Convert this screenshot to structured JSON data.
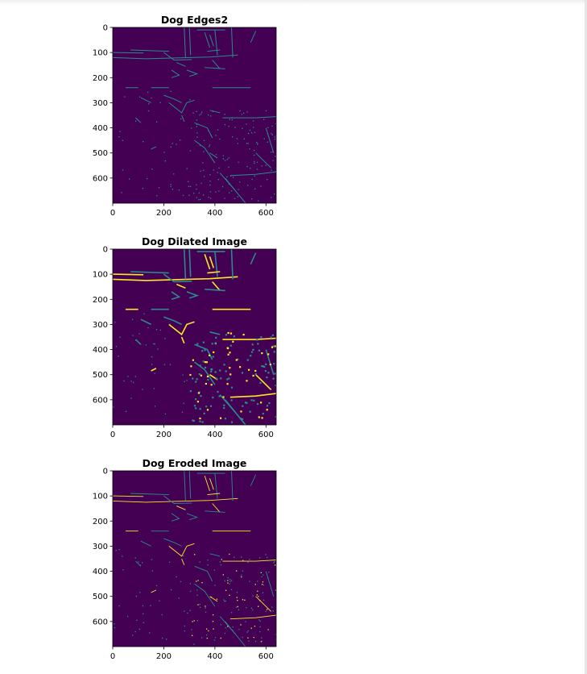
{
  "colors": {
    "background": "#440154",
    "edge_teal": "#2a8a8c",
    "edge_green": "#43b47a",
    "edge_yellow": "#fde725",
    "axis": "#000000"
  },
  "chart_data": [
    {
      "type": "heatmap",
      "title": "Dog Edges2",
      "xlabel": "",
      "ylabel": "",
      "xlim": [
        0,
        640
      ],
      "ylim": [
        700,
        0
      ],
      "x_ticks": [
        "0",
        "200",
        "400",
        "600"
      ],
      "y_ticks": [
        "0",
        "100",
        "200",
        "300",
        "400",
        "500",
        "600"
      ],
      "grid": false,
      "colormap": "viridis"
    },
    {
      "type": "heatmap",
      "title": "Dog Dilated Image",
      "xlabel": "",
      "ylabel": "",
      "xlim": [
        0,
        640
      ],
      "ylim": [
        700,
        0
      ],
      "x_ticks": [
        "0",
        "200",
        "400",
        "600"
      ],
      "y_ticks": [
        "0",
        "100",
        "200",
        "300",
        "400",
        "500",
        "600"
      ],
      "grid": false,
      "colormap": "viridis"
    },
    {
      "type": "heatmap",
      "title": "Dog Eroded Image",
      "xlabel": "",
      "ylabel": "",
      "xlim": [
        0,
        640
      ],
      "ylim": [
        700,
        0
      ],
      "x_ticks": [
        "0",
        "200",
        "400",
        "600"
      ],
      "y_ticks": [
        "0",
        "100",
        "200",
        "300",
        "400",
        "500",
        "600"
      ],
      "grid": false,
      "colormap": "viridis"
    }
  ]
}
